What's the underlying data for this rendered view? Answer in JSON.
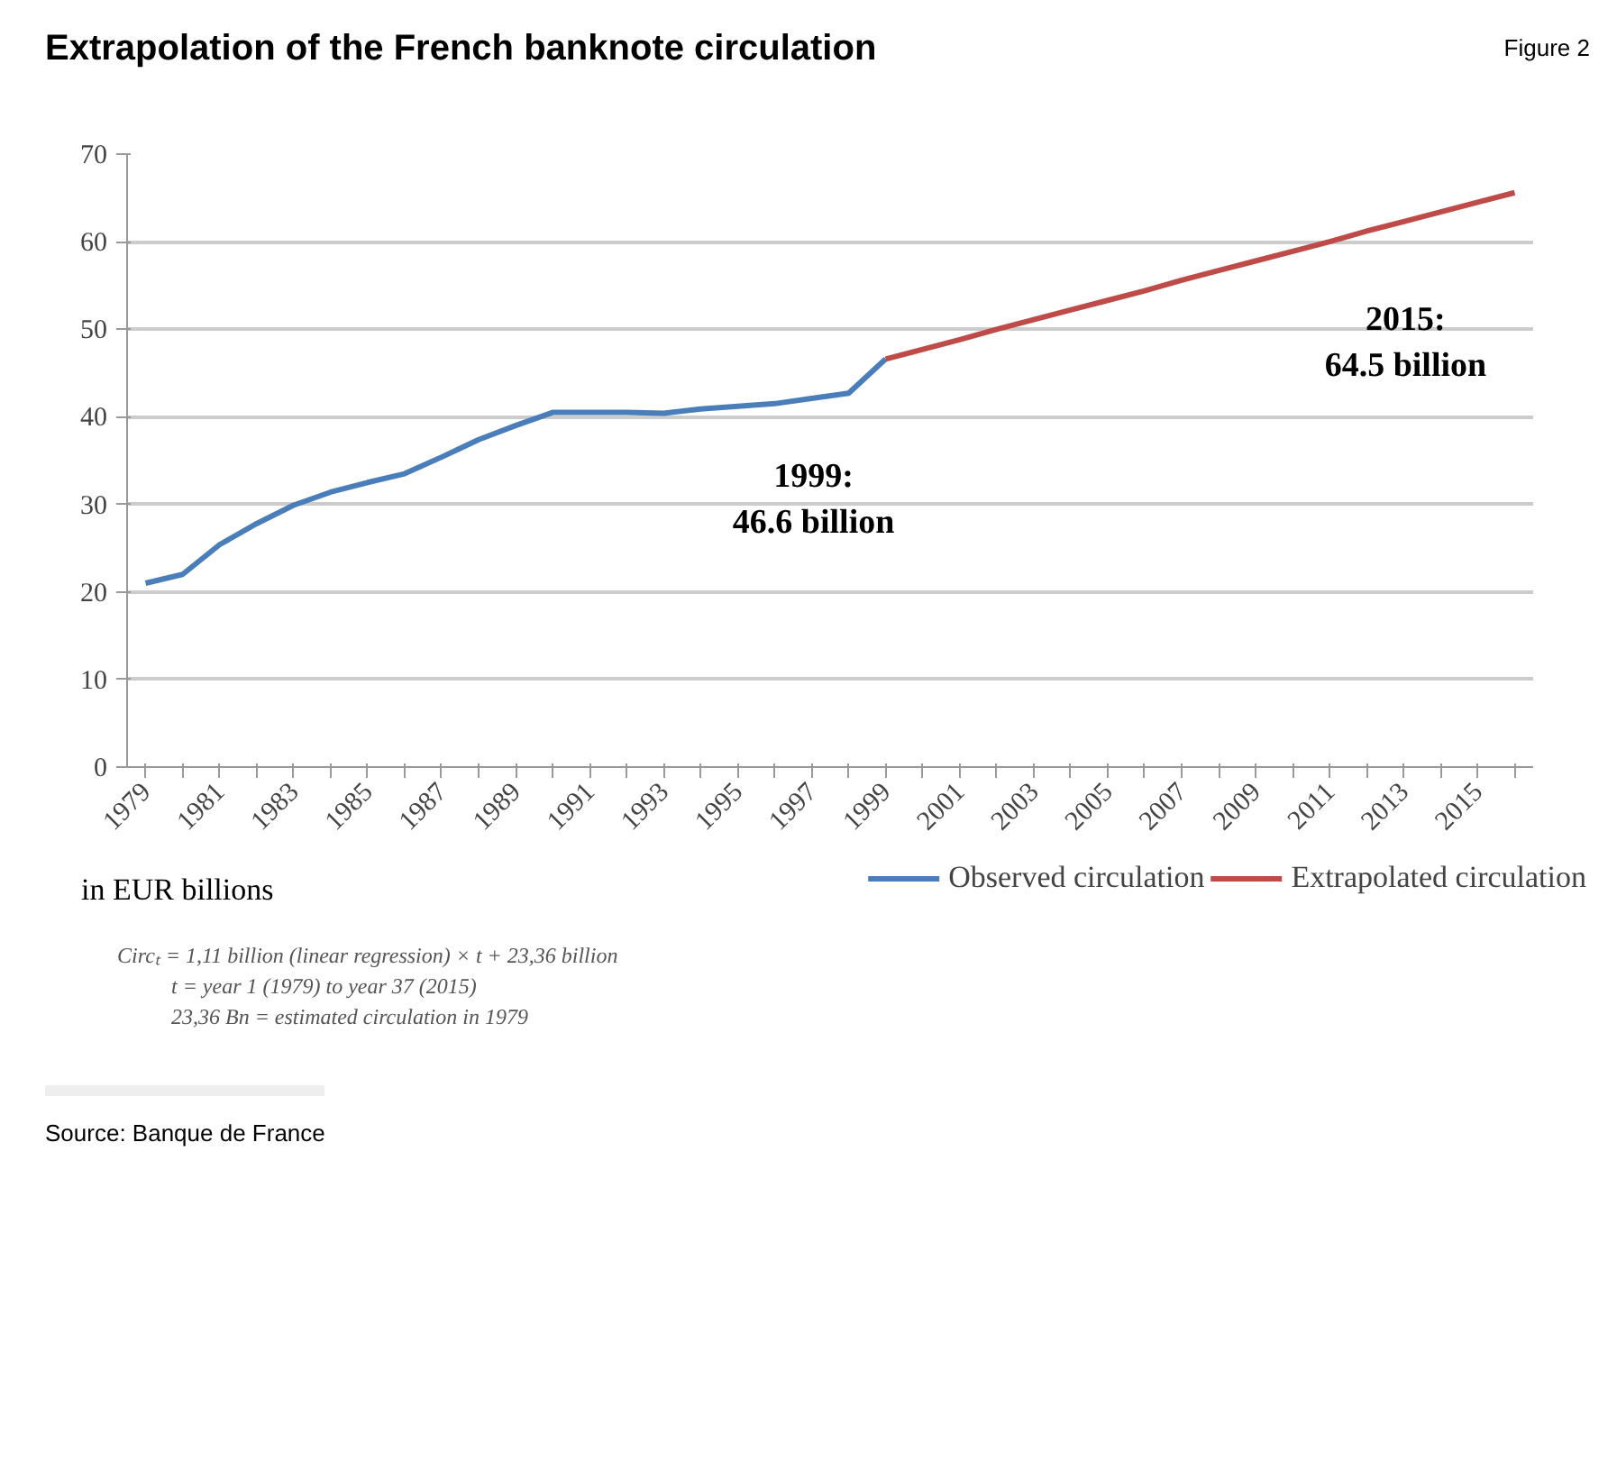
{
  "chart_data": {
    "type": "line",
    "title": "Extrapolation of the French banknote circulation",
    "subtitle": "Figure 2",
    "categories": [
      "1979",
      null,
      "1981",
      null,
      "1983",
      null,
      "1985",
      null,
      "1987",
      null,
      "1989",
      null,
      "1991",
      null,
      "1993",
      null,
      "1995",
      null,
      "1997",
      null,
      "1999",
      null,
      "2001",
      null,
      "2003",
      null,
      "2005",
      null,
      "2007",
      null,
      "2009",
      null,
      "2011",
      null,
      "2013",
      null,
      "2015",
      null
    ],
    "series": [
      {
        "name": "Observed circulation",
        "color": "#4a7ebb",
        "values": [
          21.0,
          22.0,
          25.4,
          27.8,
          29.9,
          31.4,
          32.5,
          33.5,
          35.4,
          37.4,
          39.0,
          40.5,
          40.5,
          40.5,
          40.4,
          40.9,
          41.2,
          41.5,
          42.1,
          42.7,
          46.6,
          null,
          null,
          null,
          null,
          null,
          null,
          null,
          null,
          null,
          null,
          null,
          null,
          null,
          null,
          null,
          null,
          null
        ]
      },
      {
        "name": "Extrapolated circulation",
        "color": "#be4b48",
        "values": [
          null,
          null,
          null,
          null,
          null,
          null,
          null,
          null,
          null,
          null,
          null,
          null,
          null,
          null,
          null,
          null,
          null,
          null,
          null,
          null,
          46.6,
          47.7,
          48.8,
          50.0,
          51.1,
          52.2,
          53.3,
          54.4,
          55.6,
          56.7,
          57.8,
          58.9,
          60.0,
          61.2,
          62.3,
          63.4,
          64.5,
          65.6
        ]
      }
    ],
    "ylim": [
      0,
      70
    ],
    "yticks": [
      0,
      10,
      20,
      30,
      40,
      50,
      60,
      70
    ],
    "grid": "y",
    "legend": "bottom",
    "line_style": "solid",
    "annotations": [
      {
        "text": "1999:\n46.6 billion",
        "x": "1999",
        "y": 46.6
      },
      {
        "text": "2015:\n64.5 billion",
        "x": "2015",
        "y": 64.5
      },
      "in EUR billions",
      "Circₜ = 1,11 billion (linear regression) × t + 23,36 billion",
      "t = year 1 (1979) to year 37 (2015)",
      "23,36 Bn = estimated circulation in 1979",
      "Source: Banque de France"
    ]
  }
}
